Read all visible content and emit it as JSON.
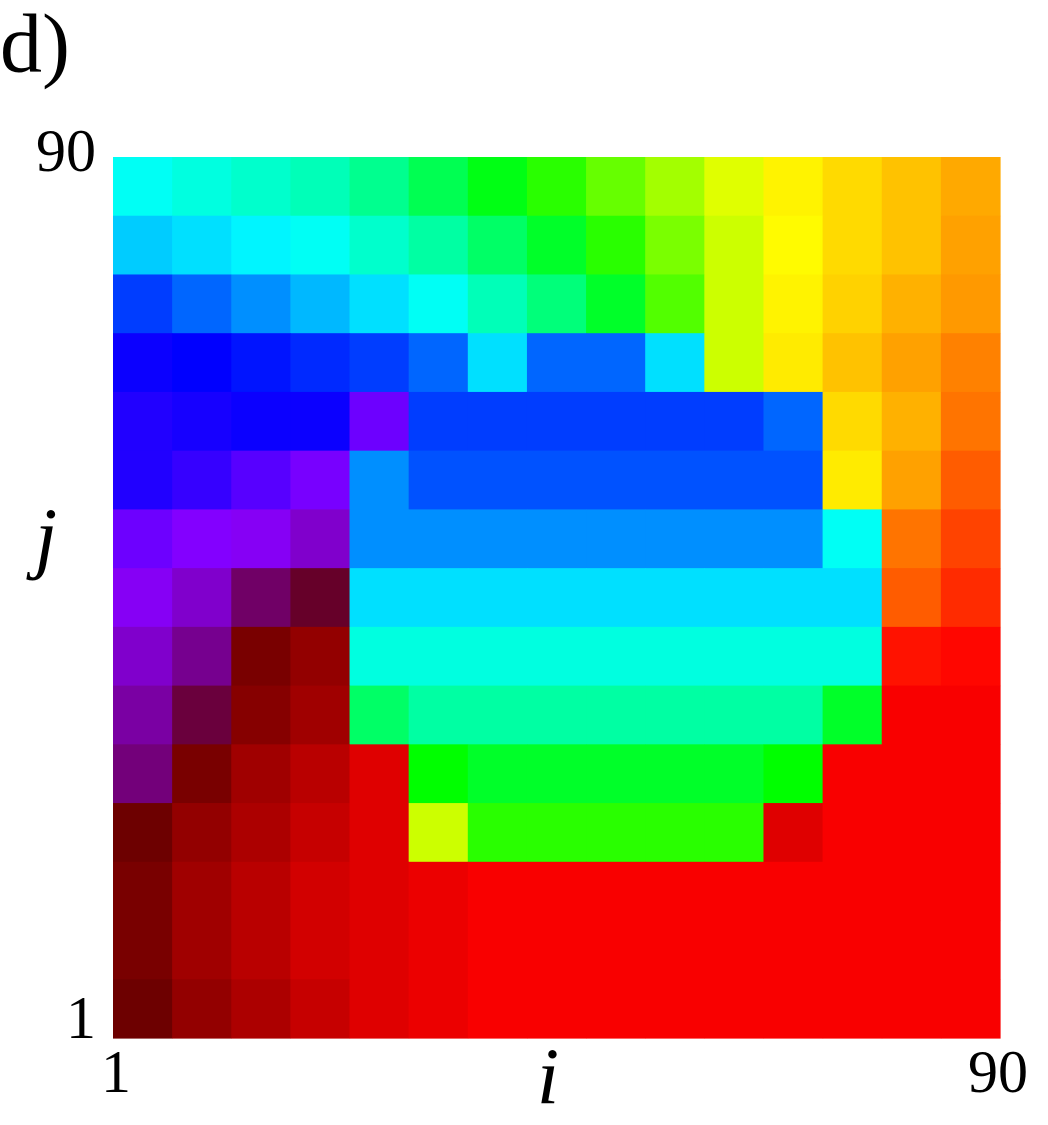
{
  "chart_data": {
    "type": "heatmap",
    "panel_label": "d)",
    "xlabel": "i",
    "ylabel": "j",
    "xlim": [
      1,
      90
    ],
    "ylim": [
      1,
      90
    ],
    "xticks": [
      1,
      90
    ],
    "yticks": [
      1,
      90
    ],
    "zlim": [
      0,
      100
    ],
    "colormap": [
      "#600000",
      "#ff0000",
      "#ff9900",
      "#ffff00",
      "#00ff00",
      "#00ffff",
      "#0000ff",
      "#8800ff",
      "#600000"
    ],
    "z": [
      [
        62,
        61,
        60,
        59,
        57,
        54,
        51,
        48,
        45,
        42,
        39,
        36,
        33,
        30,
        27
      ],
      [
        65,
        64,
        63,
        62,
        60,
        58,
        55,
        52,
        48,
        44,
        40,
        37,
        33,
        30,
        26
      ],
      [
        72,
        70,
        68,
        66,
        64,
        62,
        59,
        56,
        52,
        46,
        40,
        36,
        32,
        28,
        25
      ],
      [
        76,
        75,
        74,
        73,
        72,
        70,
        64,
        70,
        70,
        64,
        40,
        35,
        30,
        26,
        23
      ],
      [
        78,
        77,
        76,
        76,
        85,
        72,
        72,
        72,
        72,
        72,
        72,
        70,
        33,
        28,
        22
      ],
      [
        78,
        80,
        83,
        86,
        68,
        71,
        71,
        71,
        71,
        71,
        71,
        71,
        35,
        26,
        20
      ],
      [
        85,
        87,
        88,
        90,
        68,
        68,
        68,
        68,
        68,
        68,
        68,
        68,
        62,
        22,
        18
      ],
      [
        88,
        90,
        95,
        98,
        64,
        64,
        64,
        64,
        64,
        64,
        64,
        64,
        64,
        20,
        16
      ],
      [
        90,
        93,
        2,
        4,
        61,
        61,
        61,
        61,
        61,
        61,
        61,
        61,
        61,
        14,
        13
      ],
      [
        92,
        97,
        3,
        5,
        55,
        58,
        58,
        58,
        58,
        58,
        58,
        58,
        52,
        12,
        12
      ],
      [
        94,
        2,
        5,
        7,
        10,
        50,
        52,
        52,
        52,
        52,
        52,
        50,
        12,
        12,
        12
      ],
      [
        1,
        4,
        6,
        8,
        10,
        40,
        48,
        48,
        48,
        48,
        48,
        10,
        12,
        12,
        12
      ],
      [
        2,
        5,
        7,
        9,
        10,
        11,
        12,
        12,
        12,
        12,
        12,
        12,
        12,
        12,
        12
      ],
      [
        2,
        5,
        7,
        9,
        10,
        11,
        12,
        12,
        12,
        12,
        12,
        12,
        12,
        12,
        12
      ],
      [
        1,
        4,
        6,
        8,
        10,
        11,
        12,
        12,
        12,
        12,
        12,
        12,
        12,
        12,
        12
      ]
    ]
  }
}
